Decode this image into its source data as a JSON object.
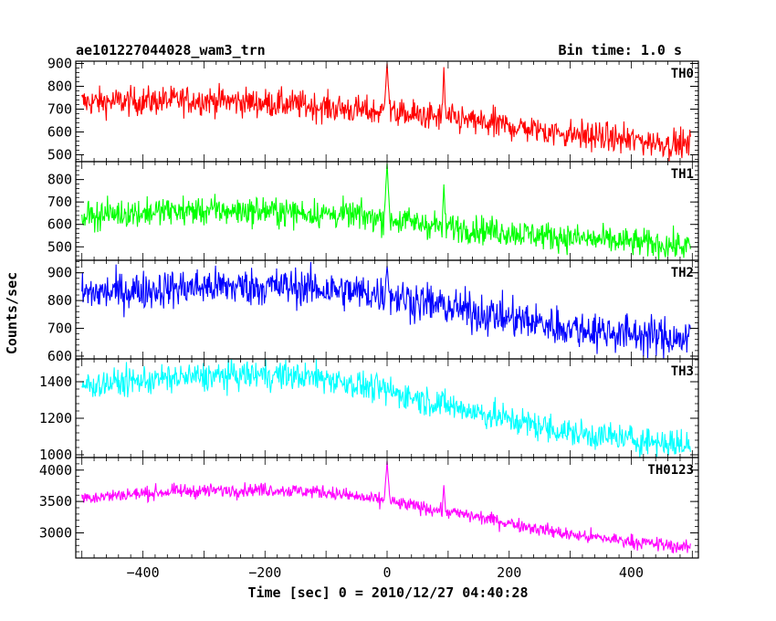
{
  "chart_data": {
    "type": "line",
    "title": "ae101227044028_wam3_trn",
    "bin_time_label": "Bin time: 1.0 s",
    "xlabel": "Time [sec] 0 = 2010/12/27 04:40:28",
    "ylabel": "Counts/sec",
    "xlim": [
      -510,
      510
    ],
    "x_ticks": [
      -400,
      -200,
      0,
      200,
      400
    ],
    "x_tick_labels": [
      "−400",
      "−200",
      "0",
      "200",
      "400"
    ],
    "grid": false,
    "panels": [
      {
        "name": "TH0",
        "color": "#ff0000",
        "ylim": [
          470,
          910
        ],
        "y_ticks": [
          500,
          600,
          700,
          800,
          900
        ],
        "y_tick_labels": [
          "500",
          "600",
          "700",
          "800",
          "900"
        ],
        "trend_x": [
          -500,
          -300,
          -150,
          100,
          300,
          500
        ],
        "trend_y": [
          730,
          740,
          720,
          660,
          590,
          540
        ],
        "noise": 32,
        "spikes": [
          {
            "x": 0,
            "y": 905,
            "width": 4
          },
          {
            "x": 93,
            "y": 890,
            "width": 2
          }
        ]
      },
      {
        "name": "TH1",
        "color": "#00ff00",
        "ylim": [
          440,
          880
        ],
        "y_ticks": [
          500,
          600,
          700,
          800
        ],
        "y_tick_labels": [
          "500",
          "600",
          "700",
          "800"
        ],
        "trend_x": [
          -500,
          -350,
          -200,
          -50,
          100,
          300,
          500
        ],
        "trend_y": [
          640,
          660,
          660,
          640,
          590,
          540,
          500
        ],
        "noise": 32,
        "spikes": [
          {
            "x": 0,
            "y": 875,
            "width": 4
          },
          {
            "x": 93,
            "y": 790,
            "width": 2
          }
        ]
      },
      {
        "name": "TH2",
        "color": "#0000ff",
        "ylim": [
          590,
          945
        ],
        "y_ticks": [
          600,
          700,
          800,
          900
        ],
        "y_tick_labels": [
          "600",
          "700",
          "800",
          "900"
        ],
        "trend_x": [
          -500,
          -300,
          -150,
          0,
          150,
          300,
          500
        ],
        "trend_y": [
          825,
          850,
          850,
          820,
          755,
          700,
          660
        ],
        "noise": 35,
        "spikes": [
          {
            "x": 0,
            "y": 940,
            "width": 3
          }
        ]
      },
      {
        "name": "TH3",
        "color": "#00ffff",
        "ylim": [
          985,
          1525
        ],
        "y_ticks": [
          1000,
          1200,
          1400
        ],
        "y_tick_labels": [
          "1000",
          "1200",
          "1400"
        ],
        "trend_x": [
          -500,
          -350,
          -200,
          -100,
          0,
          150,
          300,
          500
        ],
        "trend_y": [
          1380,
          1420,
          1440,
          1420,
          1350,
          1230,
          1120,
          1050
        ],
        "noise": 40,
        "spikes": []
      },
      {
        "name": "TH0123",
        "color": "#ff00ff",
        "ylim": [
          2600,
          4200
        ],
        "y_ticks": [
          3000,
          3500,
          4000
        ],
        "y_tick_labels": [
          "3000",
          "3500",
          "4000"
        ],
        "trend_x": [
          -500,
          -350,
          -200,
          -100,
          0,
          150,
          300,
          500
        ],
        "trend_y": [
          3560,
          3660,
          3690,
          3650,
          3500,
          3250,
          2970,
          2760
        ],
        "noise": 55,
        "spikes": [
          {
            "x": 0,
            "y": 4150,
            "width": 4
          },
          {
            "x": 93,
            "y": 3780,
            "width": 2
          }
        ]
      }
    ]
  }
}
